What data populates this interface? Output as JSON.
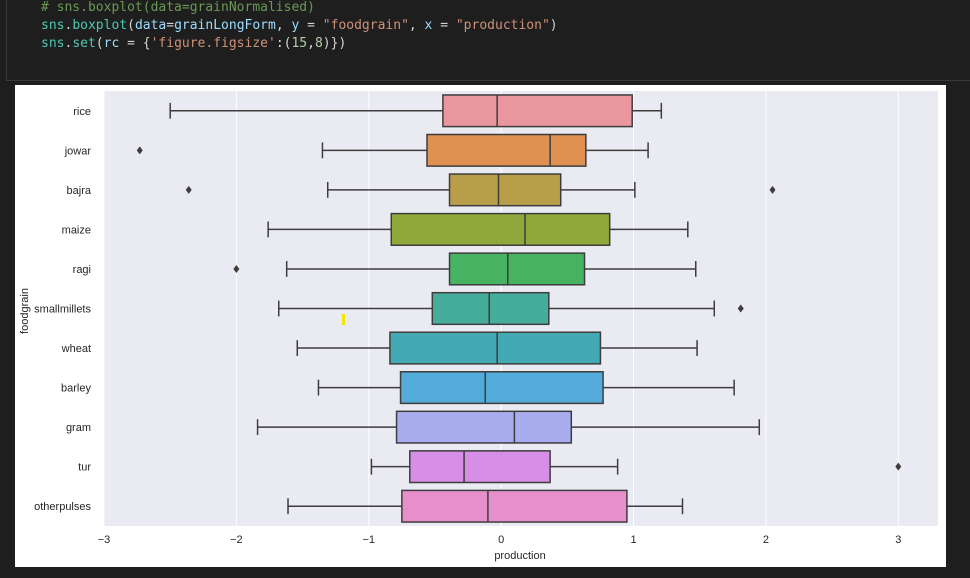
{
  "code": {
    "line1": {
      "comment": "# sns.boxplot(data=grainNormalised)"
    },
    "line2": {
      "obj": "sns",
      "dot": ".",
      "fn": "boxplot",
      "open": "(",
      "arg1": "data",
      "eq1": "=",
      "val1": "grainLongForm",
      "sep1": ", ",
      "arg2": "y",
      "eq2": " = ",
      "val2": "\"foodgrain\"",
      "sep2": ", ",
      "arg3": "x",
      "eq3": " = ",
      "val3": "\"production\"",
      "close": ")"
    },
    "line3": {
      "obj": "sns",
      "dot": ".",
      "fn": "set",
      "open": "(",
      "arg1": "rc",
      "eq1": " = ",
      "brace": "{",
      "key": "'figure.figsize'",
      "colon": ":(",
      "n1": "15",
      "comma": ",",
      "n2": "8",
      "close": ")})"
    }
  },
  "colors": {
    "plot_bg": "#eaeaf2",
    "grid": "#ffffff",
    "line": "#3d3d3d",
    "marker": "#f5e400"
  },
  "chart_data": {
    "type": "boxplot",
    "orientation": "horizontal",
    "xlabel": "production",
    "ylabel": "foodgrain",
    "xlim": [
      -3,
      3.3
    ],
    "xticks": [
      -3,
      -2,
      -1,
      0,
      1,
      2,
      3
    ],
    "xtick_labels": [
      "−3",
      "−2",
      "−1",
      "0",
      "1",
      "2",
      "3"
    ],
    "grid": true,
    "categories": [
      "rice",
      "jowar",
      "bajra",
      "maize",
      "ragi",
      "smallmillets",
      "wheat",
      "barley",
      "gram",
      "tur",
      "otherpulses"
    ],
    "boxes": [
      {
        "category": "rice",
        "whislo": -2.5,
        "q1": -0.44,
        "median": -0.03,
        "q3": 0.99,
        "whishi": 1.21,
        "fliers": [],
        "color": "#ea969f"
      },
      {
        "category": "jowar",
        "whislo": -1.35,
        "q1": -0.56,
        "median": 0.37,
        "q3": 0.64,
        "whishi": 1.11,
        "fliers": [
          -2.73
        ],
        "color": "#df9152"
      },
      {
        "category": "bajra",
        "whislo": -1.31,
        "q1": -0.39,
        "median": -0.02,
        "q3": 0.45,
        "whishi": 1.01,
        "fliers": [
          -2.36,
          2.05
        ],
        "color": "#b89e48"
      },
      {
        "category": "maize",
        "whislo": -1.76,
        "q1": -0.83,
        "median": 0.18,
        "q3": 0.82,
        "whishi": 1.41,
        "fliers": [],
        "color": "#8fa83a"
      },
      {
        "category": "ragi",
        "whislo": -1.62,
        "q1": -0.39,
        "median": 0.05,
        "q3": 0.63,
        "whishi": 1.47,
        "fliers": [
          -2.0
        ],
        "color": "#47b262"
      },
      {
        "category": "smallmillets",
        "whislo": -1.68,
        "q1": -0.52,
        "median": -0.09,
        "q3": 0.36,
        "whishi": 1.61,
        "fliers": [
          1.81
        ],
        "color": "#46ad9a"
      },
      {
        "category": "wheat",
        "whislo": -1.54,
        "q1": -0.84,
        "median": -0.03,
        "q3": 0.75,
        "whishi": 1.48,
        "fliers": [],
        "color": "#43aab4"
      },
      {
        "category": "barley",
        "whislo": -1.38,
        "q1": -0.76,
        "median": -0.12,
        "q3": 0.77,
        "whishi": 1.76,
        "fliers": [],
        "color": "#52abd9"
      },
      {
        "category": "gram",
        "whislo": -1.84,
        "q1": -0.79,
        "median": 0.1,
        "q3": 0.53,
        "whishi": 1.95,
        "fliers": [],
        "color": "#a9acee"
      },
      {
        "category": "tur",
        "whislo": -0.98,
        "q1": -0.69,
        "median": -0.28,
        "q3": 0.37,
        "whishi": 0.88,
        "fliers": [
          3.0
        ],
        "color": "#d78ee7"
      },
      {
        "category": "otherpulses",
        "whislo": -1.61,
        "q1": -0.75,
        "median": -0.1,
        "q3": 0.95,
        "whishi": 1.37,
        "fliers": [],
        "color": "#e68fca"
      }
    ]
  }
}
